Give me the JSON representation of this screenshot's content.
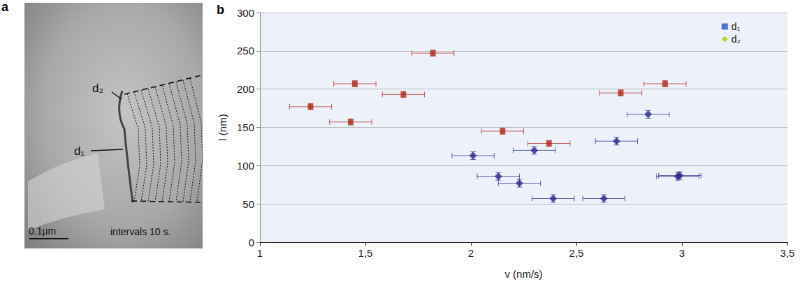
{
  "panel_a": {
    "panel_label": "a",
    "labels": [
      "d₂",
      "d₁"
    ],
    "scale_bar": "0.1µm",
    "caption": "intervals 10 s."
  },
  "chart_data": {
    "type": "scatter",
    "panel_label": "b",
    "x_label": "v (nm/s)",
    "y_label": "l (nm)",
    "xlim": [
      1,
      3.5
    ],
    "xticks": [
      {
        "value": 1,
        "label": "1"
      },
      {
        "value": 1.5,
        "label": "1,5"
      },
      {
        "value": 2,
        "label": "2"
      },
      {
        "value": 2.5,
        "label": "2,5"
      },
      {
        "value": 3,
        "label": "3"
      },
      {
        "value": 3.5,
        "label": "3,5"
      }
    ],
    "ylim": [
      0,
      300
    ],
    "yticks": [
      0,
      50,
      100,
      150,
      200,
      250,
      300
    ],
    "grid": true,
    "legend": "upper right",
    "series": [
      {
        "name": "d₁",
        "color": "#b0281c",
        "marker": "square",
        "x": [
          1.24,
          1.43,
          1.45,
          1.68,
          1.82,
          2.15,
          2.37,
          2.71,
          2.92
        ],
        "values": [
          177,
          157,
          207,
          193,
          247,
          145,
          129,
          195,
          207
        ],
        "x_err": [
          0.1,
          0.1,
          0.1,
          0.1,
          0.1,
          0.1,
          0.1,
          0.1,
          0.1
        ],
        "y_err": [
          4,
          4,
          4,
          4,
          4,
          4,
          4,
          4,
          4
        ]
      },
      {
        "name": "d₂",
        "color": "#2b2a8c",
        "marker": "diamond",
        "x": [
          2.01,
          2.13,
          2.23,
          2.39,
          2.3,
          2.63,
          2.69,
          2.84,
          2.98,
          2.99
        ],
        "values": [
          113,
          86,
          77,
          57,
          120,
          57,
          132,
          167,
          86,
          87
        ],
        "x_err": [
          0.1,
          0.1,
          0.1,
          0.1,
          0.1,
          0.1,
          0.1,
          0.1,
          0.1,
          0.1
        ],
        "y_err": [
          5,
          5,
          5,
          5,
          5,
          5,
          5,
          5,
          5,
          5
        ]
      }
    ]
  }
}
